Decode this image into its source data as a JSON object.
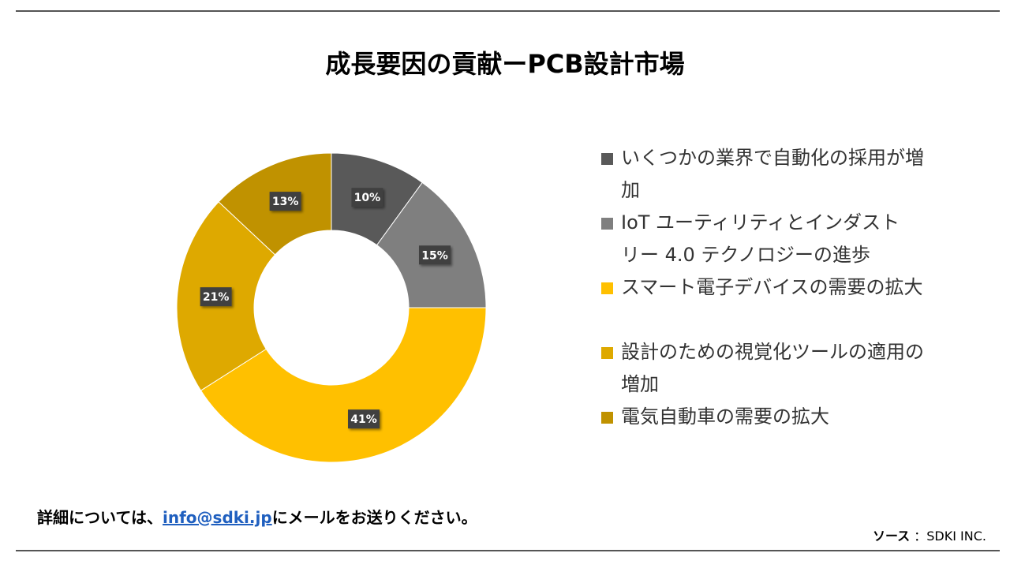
{
  "title": "成長要因の貢献ーPCB設計市場",
  "chart_data": {
    "type": "pie",
    "donut": true,
    "legend_position": "right",
    "categories": [
      "いくつかの業界で自動化の採用が増加",
      "IoT ユーティリティとインダストリー 4.0 テクノロジーの進歩",
      "スマート電子デバイスの需要の拡大",
      "設計のための視覚化ツールの適用の増加",
      "電気自動車の需要の拡大"
    ],
    "values": [
      10,
      15,
      41,
      21,
      13
    ],
    "labels": [
      "10%",
      "15%",
      "41%",
      "21%",
      "13%"
    ],
    "colors": [
      "#595959",
      "#7f7f7f",
      "#ffc000",
      "#dea900",
      "#c09200"
    ]
  },
  "legend": {
    "items": [
      {
        "line1": "いくつかの業界で自動化の採用が増",
        "line2": "加"
      },
      {
        "line1": "IoT ユーティリティとインダスト",
        "line2": "リー 4.0 テクノロジーの進歩"
      },
      {
        "line1": "スマート電子デバイスの需要の拡大",
        "line2": ""
      },
      {
        "line1": "設計のための視覚化ツールの適用の",
        "line2": "増加"
      },
      {
        "line1": "電気自動車の需要の拡大",
        "line2": ""
      }
    ]
  },
  "footer": {
    "contact_prefix": "詳細については、",
    "contact_email": "info@sdki.jp",
    "contact_suffix": "にメールをお送りください。",
    "source_label": "ソース",
    "source_value": "：SDKI INC."
  }
}
